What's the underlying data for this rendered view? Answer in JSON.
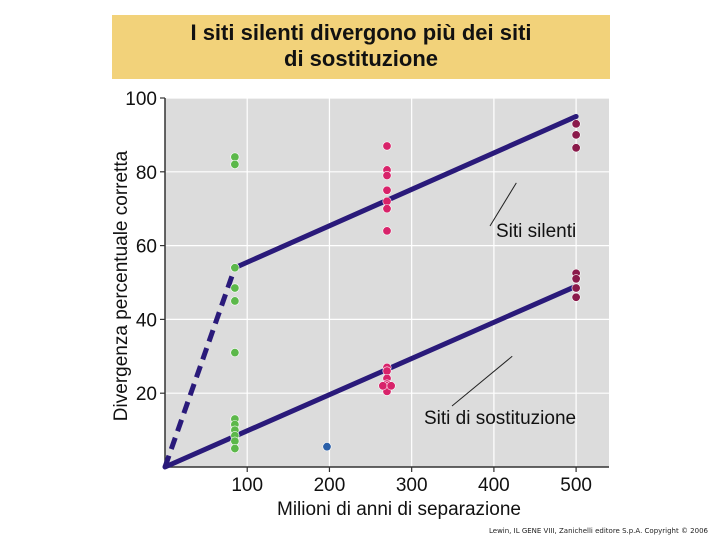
{
  "header": {
    "title_line1": "I siti silenti divergono più dei siti",
    "title_line2": "di sostituzione"
  },
  "credit": "Lewin, IL GENE VIII, Zanichelli editore S.p.A. Copyright © 2006",
  "colors": {
    "title_bg": "#f2d27a",
    "plot_bg": "#dcdcdc",
    "line": "#2a1a7a",
    "silent_points": "#d8236a",
    "green_points": "#5cb84a",
    "blue_point": "#2a5fa8",
    "dark_points": "#8a1a4a"
  },
  "chart_data": {
    "type": "scatter",
    "xlabel": "Milioni di anni di separazione",
    "ylabel": "Divergenza percentuale corretta",
    "xlim": [
      0,
      540
    ],
    "ylim": [
      0,
      100
    ],
    "x_ticks": [
      100,
      200,
      300,
      400,
      500
    ],
    "y_ticks": [
      20,
      40,
      60,
      80,
      100
    ],
    "grid": true,
    "series": [
      {
        "name": "green",
        "color": "#5cb84a",
        "points": [
          [
            85,
            84
          ],
          [
            85,
            82
          ],
          [
            85,
            54
          ],
          [
            85,
            48.5
          ],
          [
            85,
            45
          ],
          [
            85,
            31
          ],
          [
            85,
            13
          ],
          [
            85,
            11.5
          ],
          [
            85,
            10
          ],
          [
            85,
            8.5
          ],
          [
            85,
            7
          ],
          [
            85,
            5
          ]
        ]
      },
      {
        "name": "blue",
        "color": "#2a5fa8",
        "points": [
          [
            197,
            5.5
          ]
        ]
      },
      {
        "name": "pink",
        "color": "#d8236a",
        "points": [
          [
            270,
            87
          ],
          [
            270,
            80.5
          ],
          [
            270,
            79
          ],
          [
            270,
            75
          ],
          [
            270,
            72
          ],
          [
            270,
            70
          ],
          [
            270,
            64
          ],
          [
            270,
            27
          ],
          [
            270,
            26
          ],
          [
            270,
            24
          ],
          [
            270,
            22.5
          ],
          [
            270,
            22
          ],
          [
            270,
            20.5
          ],
          [
            265,
            22
          ],
          [
            275,
            22
          ]
        ]
      },
      {
        "name": "dark-pink",
        "color": "#8a1a4a",
        "points": [
          [
            500,
            93
          ],
          [
            500,
            90
          ],
          [
            500,
            86.5
          ],
          [
            500,
            52.5
          ],
          [
            500,
            51
          ],
          [
            500,
            48.5
          ],
          [
            500,
            46
          ]
        ]
      }
    ],
    "lines": [
      {
        "name": "silent-trend",
        "x": [
          85,
          500
        ],
        "y": [
          54,
          95
        ],
        "style": "solid"
      },
      {
        "name": "silent-early",
        "x": [
          0,
          85
        ],
        "y": [
          0,
          54
        ],
        "style": "dashed"
      },
      {
        "name": "replacement-trend",
        "x": [
          0,
          500
        ],
        "y": [
          0,
          49
        ],
        "style": "solid"
      }
    ],
    "annotations": [
      {
        "text": "Siti silenti",
        "points_to": [
          330,
          77
        ]
      },
      {
        "text": "Siti di sostituzione",
        "points_to": [
          325,
          30
        ]
      }
    ]
  }
}
